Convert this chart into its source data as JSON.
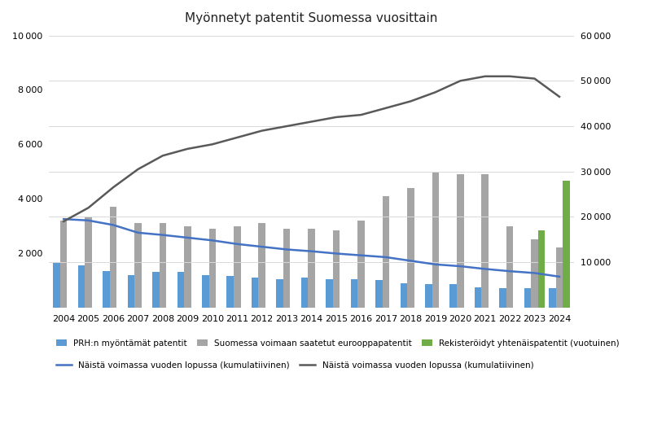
{
  "years": [
    2004,
    2005,
    2006,
    2007,
    2008,
    2009,
    2010,
    2011,
    2012,
    2013,
    2014,
    2015,
    2016,
    2017,
    2018,
    2019,
    2020,
    2021,
    2022,
    2023,
    2024
  ],
  "prh_patents": [
    1650,
    1550,
    1350,
    1200,
    1300,
    1300,
    1200,
    1150,
    1100,
    1050,
    1100,
    1050,
    1050,
    1000,
    900,
    850,
    850,
    750,
    700,
    700,
    700
  ],
  "euro_patents": [
    3200,
    3300,
    3700,
    3100,
    3100,
    3000,
    2900,
    3000,
    3100,
    2900,
    2900,
    2850,
    3200,
    4100,
    4400,
    5000,
    4900,
    4900,
    3000,
    2500,
    2200
  ],
  "unitary_patents": [
    0,
    0,
    0,
    0,
    0,
    0,
    0,
    0,
    0,
    0,
    0,
    0,
    0,
    0,
    0,
    0,
    0,
    0,
    0,
    17000,
    28000
  ],
  "cumul_prh": [
    19500,
    19200,
    18200,
    16500,
    16000,
    15400,
    14800,
    14000,
    13400,
    12800,
    12400,
    11900,
    11500,
    11100,
    10300,
    9500,
    9100,
    8500,
    8000,
    7600,
    6800
  ],
  "cumul_euro": [
    19000,
    22000,
    26500,
    30500,
    33500,
    35000,
    36000,
    37500,
    39000,
    40000,
    41000,
    42000,
    42500,
    44000,
    45500,
    47500,
    50000,
    51000,
    51000,
    50500,
    46500
  ],
  "title": "Myönnetyt patentit Suomessa vuosittain",
  "bar_width": 0.28,
  "prh_color": "#5b9bd5",
  "euro_color": "#a5a5a5",
  "unitary_color": "#70ad47",
  "cumul_prh_color": "#4472c4",
  "cumul_euro_color": "#595959",
  "left_ylim": [
    0,
    10000
  ],
  "right_ylim": [
    0,
    60000
  ],
  "legend_labels": [
    "PRH:n myöntämät patentit",
    "Suomessa voimaan saatetut eurooppapatentit",
    "Rekisteröidyt yhtenäispatentit (vuotuinen)",
    "Näistä voimassa vuoden lopussa (kumulatiivinen)",
    "Näistä voimassa vuoden lopussa (kumulatiivinen)"
  ],
  "background_color": "#ffffff",
  "grid_color": "#d9d9d9"
}
